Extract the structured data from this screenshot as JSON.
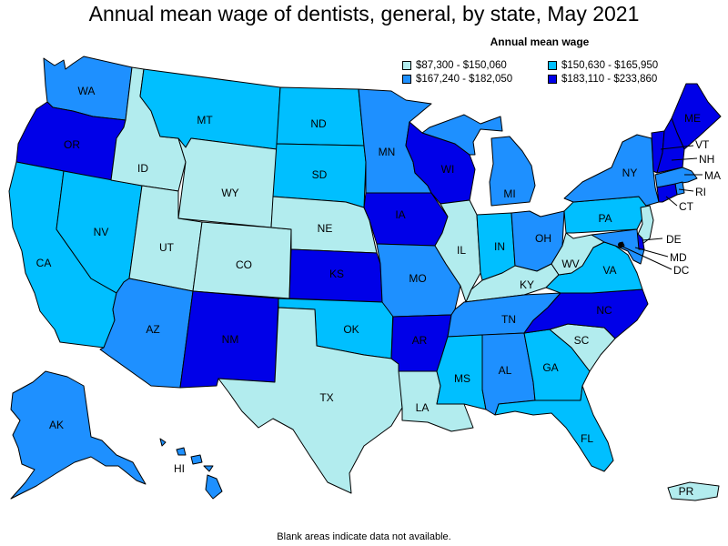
{
  "title": "Annual mean wage of dentists, general, by state, May 2021",
  "legend": {
    "title": "Annual mean wage",
    "bins": [
      {
        "label": "$87,300 - $150,060",
        "color": "#b2ecee"
      },
      {
        "label": "$150,630 - $165,950",
        "color": "#00bfff"
      },
      {
        "label": "$167,240 - $182,050",
        "color": "#1e90ff"
      },
      {
        "label": "$183,110 - $233,860",
        "color": "#0000e8"
      }
    ]
  },
  "footnote": "Blank areas indicate data not available.",
  "states": {
    "WA": 2,
    "OR": 3,
    "CA": 1,
    "ID": 0,
    "NV": 1,
    "MT": 1,
    "WY": 0,
    "UT": 0,
    "AZ": 2,
    "CO": 0,
    "NM": 3,
    "ND": 1,
    "SD": 1,
    "NE": 0,
    "KS": 3,
    "OK": 1,
    "TX": 0,
    "MN": 2,
    "IA": 3,
    "MO": 2,
    "AR": 3,
    "LA": 0,
    "WI": 3,
    "IL": 0,
    "MI": 2,
    "IN": 1,
    "OH": 2,
    "KY": 0,
    "TN": 2,
    "MS": 1,
    "AL": 2,
    "GA": 1,
    "FL": 1,
    "SC": 0,
    "NC": 3,
    "VA": 1,
    "WV": 0,
    "PA": 1,
    "NY": 2,
    "ME": 3,
    "VT": 3,
    "NH": 3,
    "MA": 2,
    "RI": 2,
    "CT": 3,
    "NJ": 0,
    "DE": 3,
    "MD": 2,
    "DC": 0,
    "AK": 2,
    "HI": 2,
    "PR": 0
  },
  "state_labels": {
    "WA": "WA",
    "OR": "OR",
    "CA": "CA",
    "ID": "ID",
    "NV": "NV",
    "MT": "MT",
    "WY": "WY",
    "UT": "UT",
    "AZ": "AZ",
    "CO": "CO",
    "NM": "NM",
    "ND": "ND",
    "SD": "SD",
    "NE": "NE",
    "KS": "KS",
    "OK": "OK",
    "TX": "TX",
    "MN": "MN",
    "IA": "IA",
    "MO": "MO",
    "AR": "AR",
    "LA": "LA",
    "WI": "WI",
    "IL": "IL",
    "MI": "MI",
    "IN": "IN",
    "OH": "OH",
    "KY": "KY",
    "TN": "TN",
    "MS": "MS",
    "AL": "AL",
    "GA": "GA",
    "FL": "FL",
    "SC": "SC",
    "NC": "NC",
    "VA": "VA",
    "WV": "WV",
    "PA": "PA",
    "NY": "NY",
    "ME": "ME",
    "VT": "VT",
    "NH": "NH",
    "MA": "MA",
    "RI": "RI",
    "CT": "CT",
    "DE": "DE",
    "MD": "MD",
    "DC": "DC",
    "AK": "AK",
    "HI": "HI",
    "PR": "PR"
  }
}
